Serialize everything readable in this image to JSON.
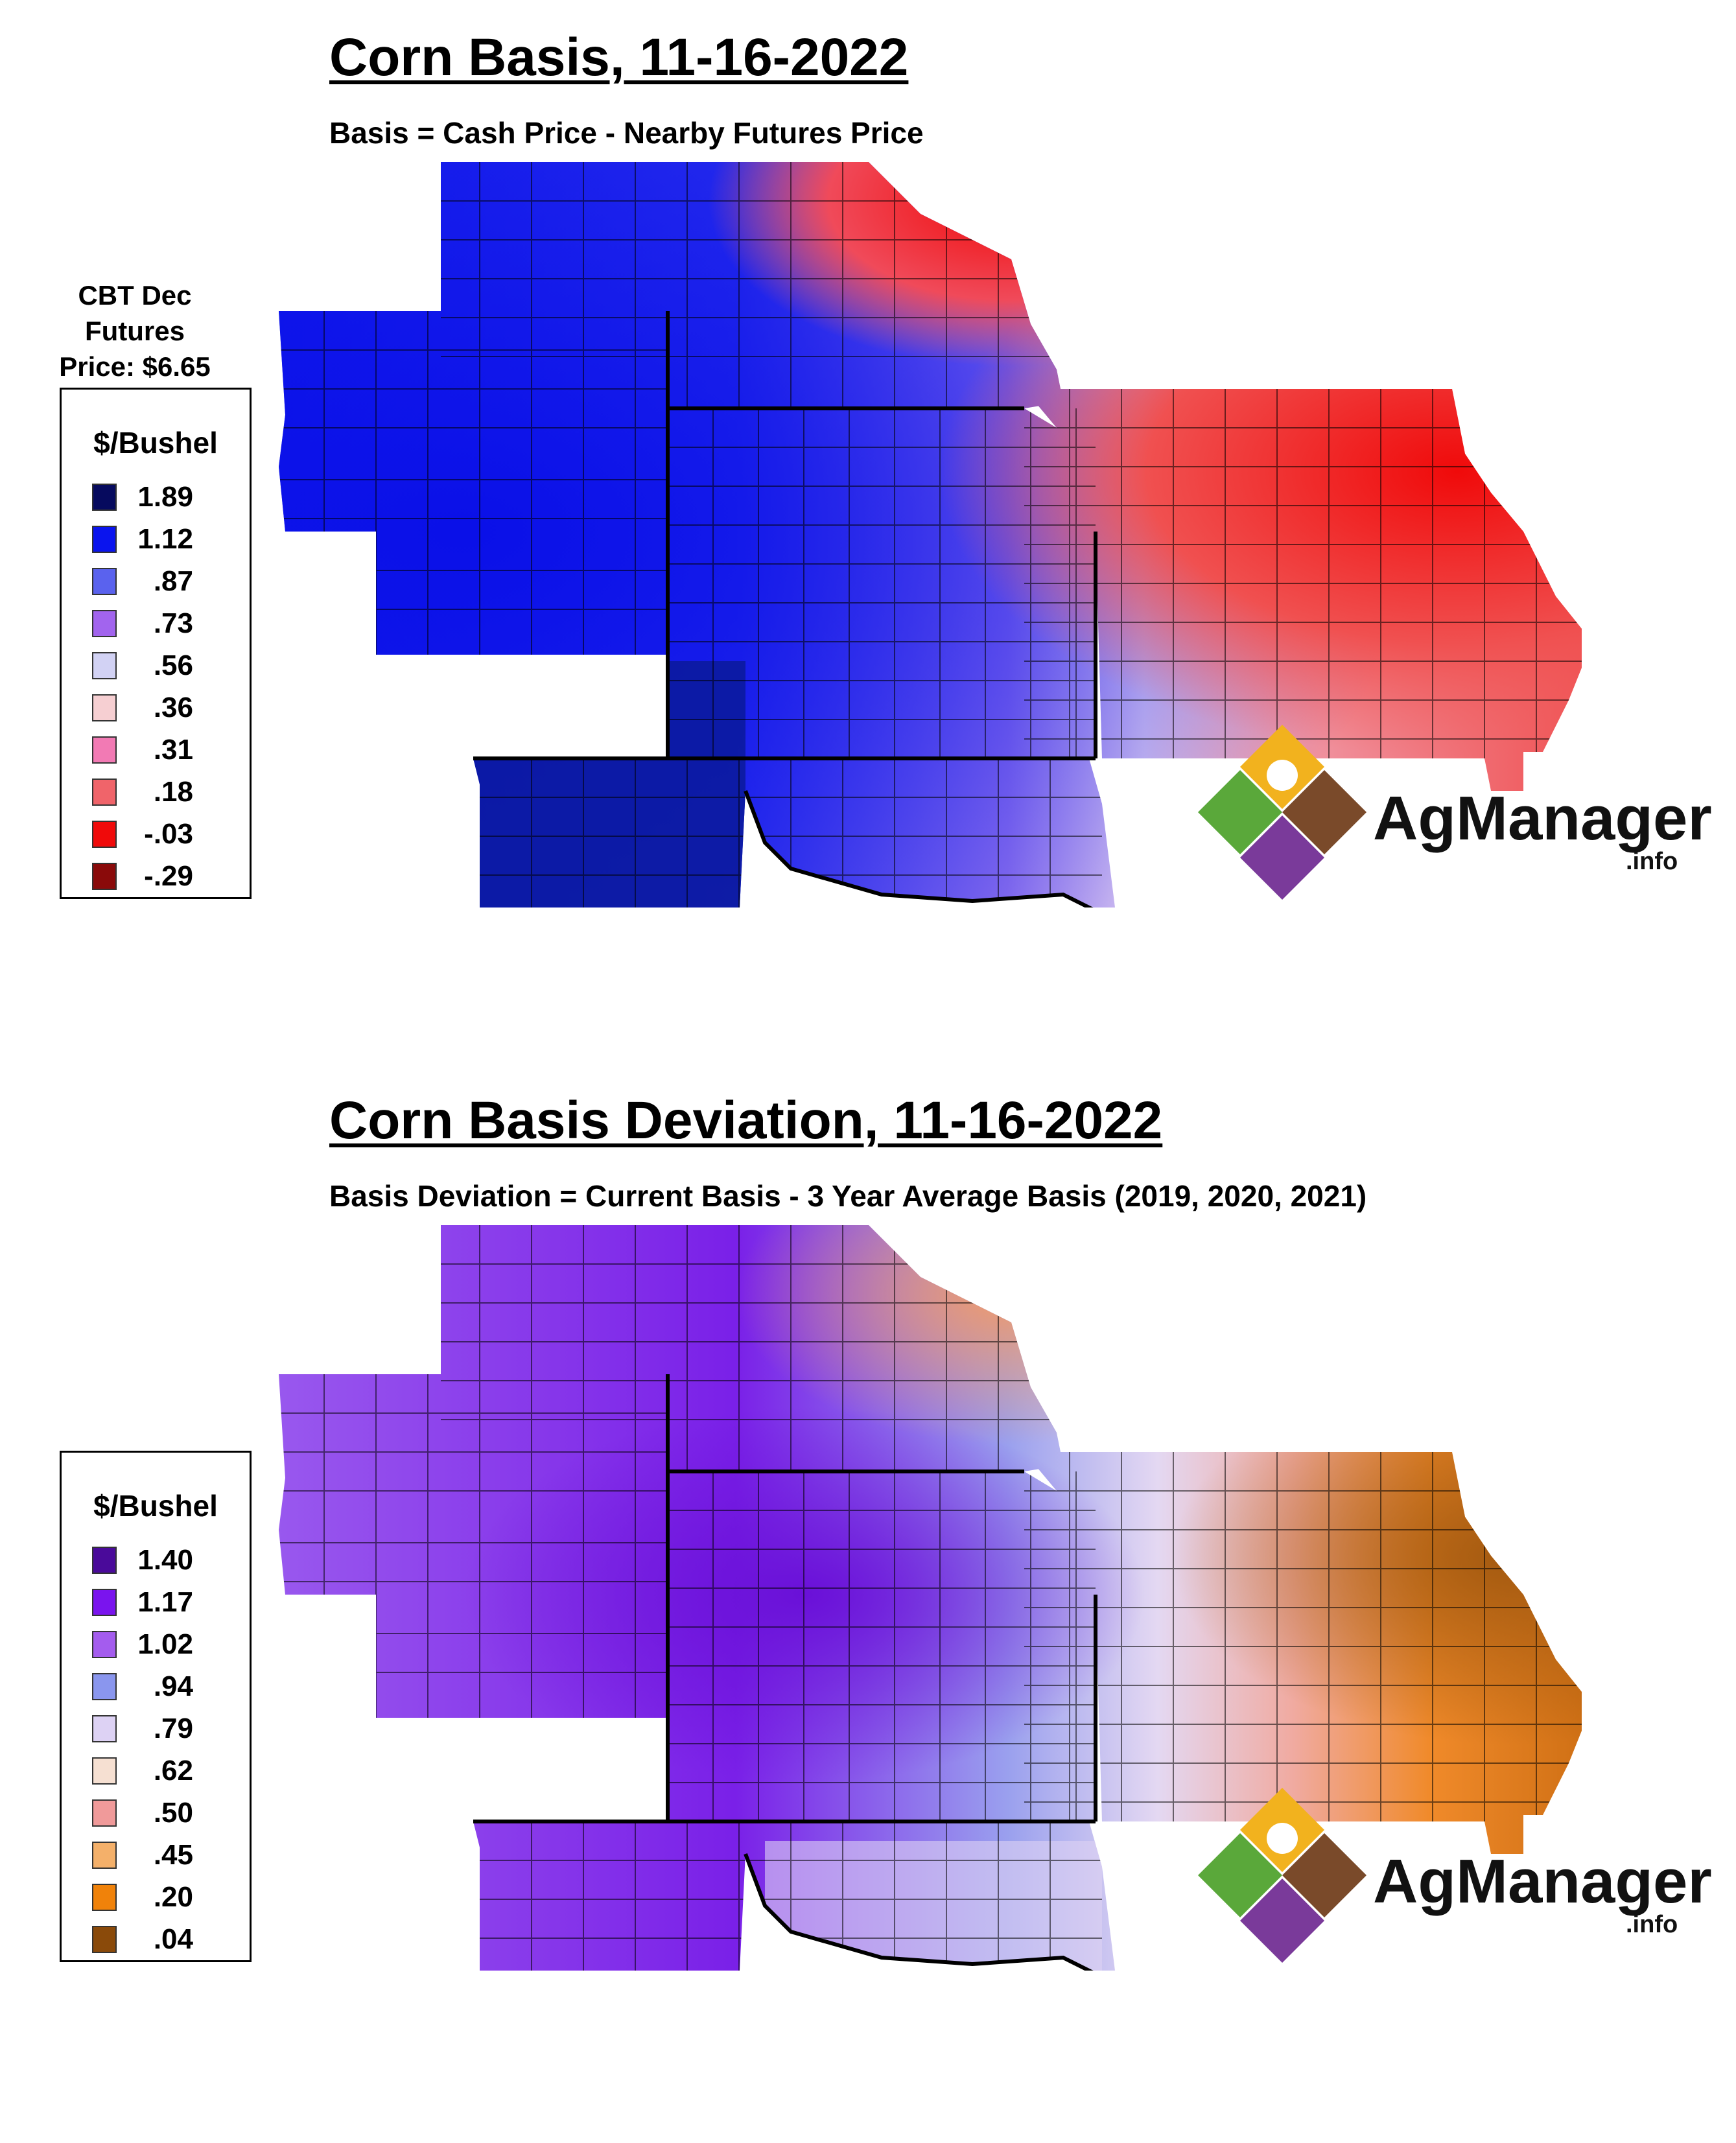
{
  "top": {
    "title": "Corn Basis, 11-16-2022",
    "subtitle": "Basis = Cash Price - Nearby Futures Price",
    "futures": [
      "CBT Dec",
      "Futures",
      "Price: $6.65"
    ],
    "legend": {
      "title": "$/Bushel",
      "items": [
        {
          "label": "1.89",
          "color": "#060a5e"
        },
        {
          "label": "1.12",
          "color": "#0a14ee"
        },
        {
          "label": ".87",
          "color": "#5a62ee"
        },
        {
          "label": ".73",
          "color": "#a264ee"
        },
        {
          "label": ".56",
          "color": "#d2d2f4"
        },
        {
          "label": ".36",
          "color": "#f6cfd2"
        },
        {
          "label": ".31",
          "color": "#f27ab4"
        },
        {
          "label": ".18",
          "color": "#f0646a"
        },
        {
          "label": "-.03",
          "color": "#f00a0a"
        },
        {
          "label": "-.29",
          "color": "#8a0a0a"
        }
      ]
    }
  },
  "bottom": {
    "title": "Corn Basis Deviation, 11-16-2022",
    "subtitle": "Basis Deviation = Current Basis - 3 Year Average Basis (2019, 2020, 2021)",
    "legend": {
      "title": "$/Bushel",
      "items": [
        {
          "label": "1.40",
          "color": "#4a0a9a"
        },
        {
          "label": "1.17",
          "color": "#7a14ee"
        },
        {
          "label": "1.02",
          "color": "#a45cee"
        },
        {
          "label": ".94",
          "color": "#8a96ee"
        },
        {
          "label": ".79",
          "color": "#ddd2f4"
        },
        {
          "label": ".62",
          "color": "#f6e0d2"
        },
        {
          "label": ".50",
          "color": "#f09a9a"
        },
        {
          "label": ".45",
          "color": "#f4b06a"
        },
        {
          "label": ".20",
          "color": "#f0820a"
        },
        {
          "label": ".04",
          "color": "#8a4a0a"
        }
      ]
    }
  },
  "logo": {
    "name": "AgManager",
    "suffix": ".info"
  }
}
